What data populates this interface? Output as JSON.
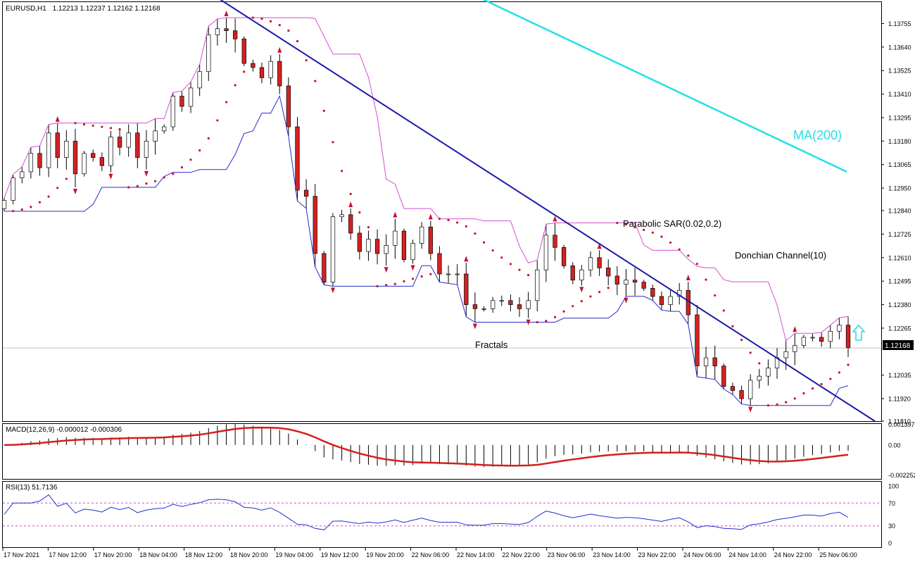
{
  "symbol_header": {
    "symbol": "EURUSD,H1",
    "ohlc": "1.12213 1.12237 1.12162 1.12168"
  },
  "price_axis": {
    "ticks": [
      "1.13755",
      "1.13640",
      "1.13525",
      "1.13410",
      "1.13295",
      "1.13180",
      "1.13065",
      "1.12950",
      "1.12840",
      "1.12725",
      "1.12610",
      "1.12495",
      "1.12380",
      "1.12265",
      "1.12035",
      "1.11920",
      "1.11810"
    ],
    "current_price": "1.12168"
  },
  "time_axis": {
    "ticks": [
      "17 Nov 2021",
      "17 Nov 12:00",
      "17 Nov 20:00",
      "18 Nov 04:00",
      "18 Nov 12:00",
      "18 Nov 20:00",
      "19 Nov 04:00",
      "19 Nov 12:00",
      "19 Nov 20:00",
      "22 Nov 06:00",
      "22 Nov 14:00",
      "22 Nov 22:00",
      "23 Nov 06:00",
      "23 Nov 14:00",
      "23 Nov 22:00",
      "24 Nov 06:00",
      "24 Nov 14:00",
      "24 Nov 22:00",
      "25 Nov 06:00"
    ]
  },
  "annotations": {
    "ma": "MA(200)",
    "sar": "Parabolic SAR(0.02,0.2)",
    "donchian": "Donchian Channel(10)",
    "fractals": "Fractals"
  },
  "macd_panel": {
    "label": "MACD(12,26,9) -0.000012 -0.000306",
    "ticks": [
      "0.001397",
      "0.00",
      "-0.002252"
    ]
  },
  "rsi_panel": {
    "label": "RSI(13) 51.7136",
    "ticks": [
      "100",
      "70",
      "30",
      "0"
    ]
  },
  "colors": {
    "bull": "#ffffff",
    "bear": "#d42222",
    "wick": "#000000",
    "trendline": "#1a1aa8",
    "ma": "#22e0e8",
    "donchian_upper": "#d24fd2",
    "donchian_lower": "#2a2ad0",
    "sar": "#c8102e",
    "macd_signal": "#d41f1f",
    "macd_hist": "#000000",
    "rsi_line": "#2a2ad0",
    "rsi_level": "#d24fd2",
    "arrow": "#22e0e8"
  },
  "chart_data": {
    "type": "candlestick",
    "symbol": "EURUSD",
    "timeframe": "H1",
    "ylim": [
      1.1181,
      1.1386
    ],
    "price_close_series": [
      1.1289,
      1.13,
      1.1303,
      1.1312,
      1.1305,
      1.1322,
      1.131,
      1.1318,
      1.1302,
      1.1312,
      1.131,
      1.1306,
      1.132,
      1.1315,
      1.1322,
      1.131,
      1.1318,
      1.1323,
      1.1325,
      1.134,
      1.1335,
      1.1344,
      1.1352,
      1.137,
      1.1373,
      1.1372,
      1.1368,
      1.1356,
      1.1354,
      1.1349,
      1.1357,
      1.1345,
      1.1325,
      1.1294,
      1.1291,
      1.1263,
      1.1249,
      1.1281,
      1.1282,
      1.1273,
      1.1264,
      1.127,
      1.1263,
      1.1267,
      1.1274,
      1.126,
      1.1268,
      1.1276,
      1.1263,
      1.1253,
      1.1253,
      1.1253,
      1.1238,
      1.1236,
      1.1236,
      1.124,
      1.124,
      1.1238,
      1.1236,
      1.124,
      1.1255,
      1.1272,
      1.1266,
      1.1257,
      1.125,
      1.1255,
      1.1261,
      1.1256,
      1.1252,
      1.1248,
      1.125,
      1.1249,
      1.1246,
      1.1242,
      1.1238,
      1.1242,
      1.1245,
      1.1233,
      1.1208,
      1.1212,
      1.1208,
      1.1198,
      1.1196,
      1.1192,
      1.1201,
      1.1203,
      1.1207,
      1.1212,
      1.1215,
      1.1218,
      1.1222,
      1.1222,
      1.122,
      1.1225,
      1.1228,
      1.1217
    ],
    "ma200": {
      "name": "MA(200)",
      "start": 1.1389,
      "end": 1.1303
    },
    "trendline": {
      "start": 1.1391,
      "end": 1.1181
    },
    "donchian": {
      "name": "Donchian Channel(10)"
    },
    "parabolic_sar": {
      "name": "Parabolic SAR(0.02,0.2)"
    },
    "macd": {
      "name": "MACD(12,26,9)",
      "main": -1.2e-05,
      "signal": -0.000306,
      "ylim": [
        -0.002252,
        0.001397
      ]
    },
    "rsi": {
      "name": "RSI(13)",
      "value": 51.7136,
      "levels": [
        70,
        30
      ],
      "ylim": [
        0,
        100
      ]
    }
  }
}
